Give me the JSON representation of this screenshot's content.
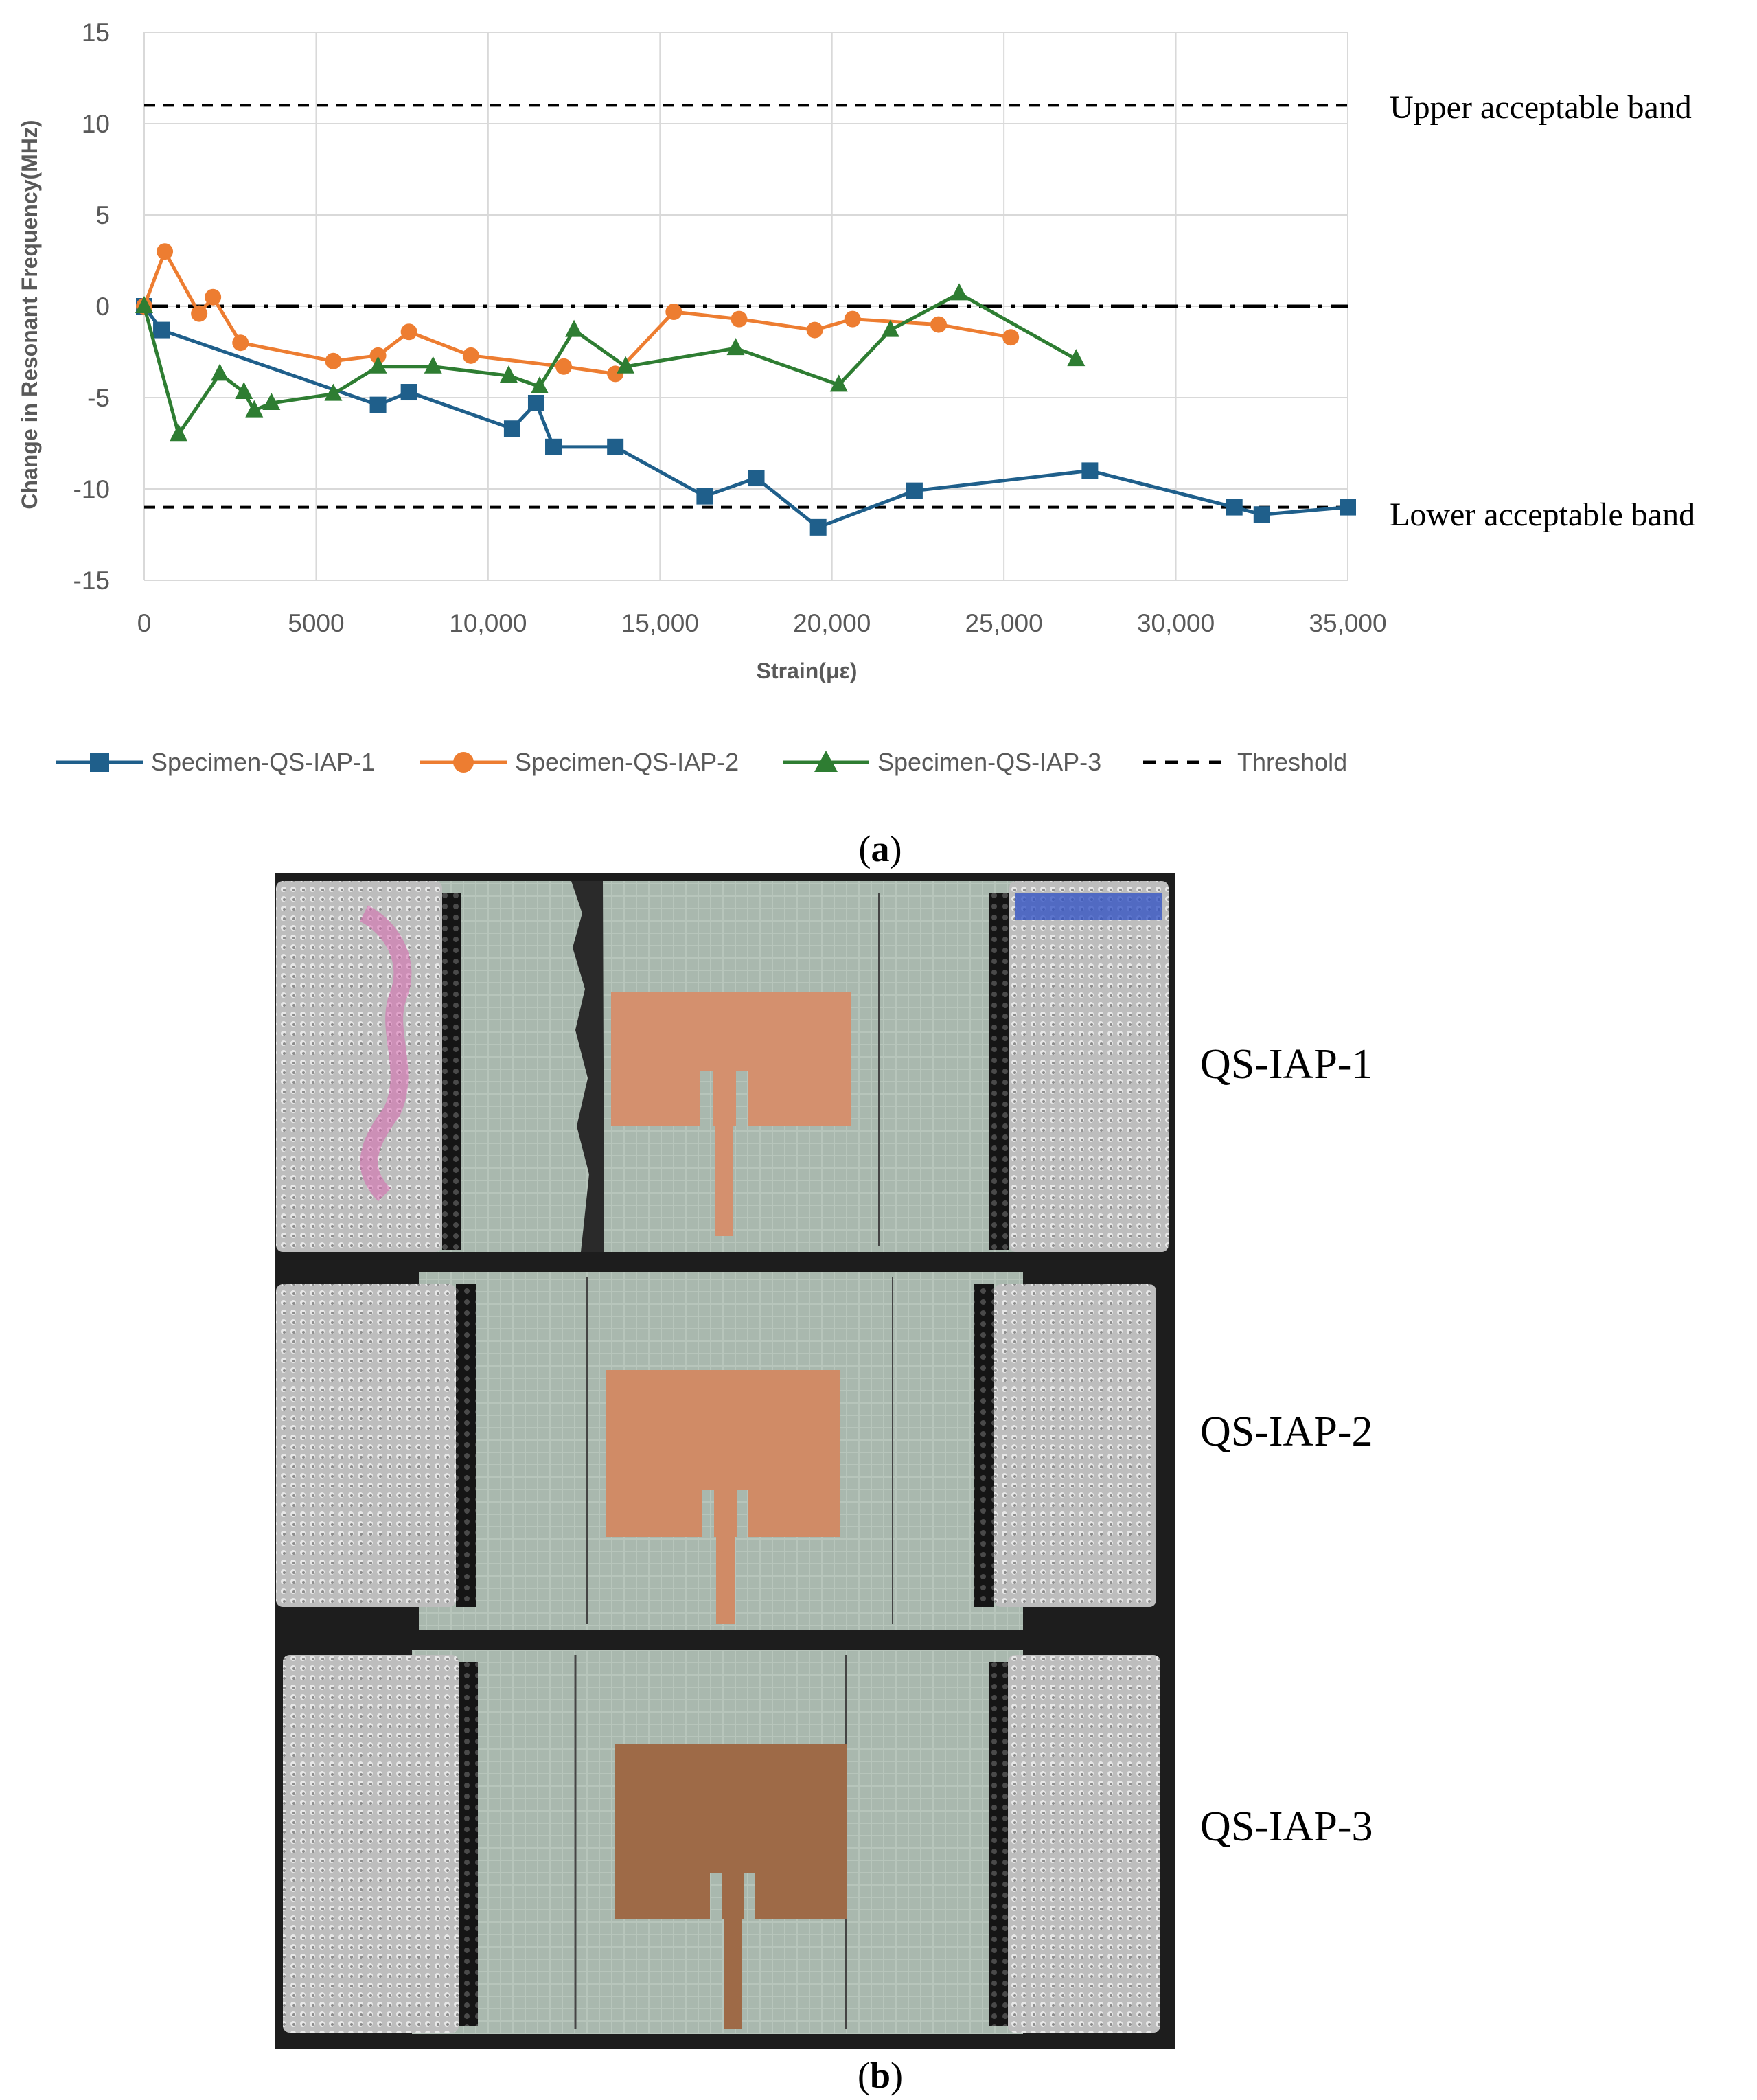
{
  "chart_data": {
    "type": "line",
    "xlabel": "Strain(με)",
    "ylabel": "Change in Resonant Frequency(MHz)",
    "xlim": [
      0,
      35000
    ],
    "ylim": [
      -15,
      15
    ],
    "xticks": [
      "0",
      "5000",
      "10,000",
      "15,000",
      "20,000",
      "25,000",
      "30,000",
      "35,000"
    ],
    "yticks": [
      "15",
      "10",
      "5",
      "0",
      "-5",
      "-10",
      "-15"
    ],
    "grid": true,
    "legend": "bottom",
    "series": [
      {
        "name": "Specimen-QS-IAP-1",
        "color": "#1f5f8b",
        "marker": "square",
        "points": [
          [
            0,
            0
          ],
          [
            500,
            -1.3
          ],
          [
            6800,
            -5.4
          ],
          [
            7700,
            -4.7
          ],
          [
            10700,
            -6.7
          ],
          [
            11400,
            -5.3
          ],
          [
            11900,
            -7.7
          ],
          [
            13700,
            -7.7
          ],
          [
            16300,
            -10.4
          ],
          [
            17800,
            -9.4
          ],
          [
            19600,
            -12.1
          ],
          [
            22400,
            -10.1
          ],
          [
            27500,
            -9.0
          ],
          [
            31700,
            -11.0
          ],
          [
            32500,
            -11.4
          ],
          [
            35000,
            -11.0
          ]
        ]
      },
      {
        "name": "Specimen-QS-IAP-2",
        "color": "#ed7d31",
        "marker": "circle",
        "points": [
          [
            0,
            0
          ],
          [
            600,
            3.0
          ],
          [
            1600,
            -0.4
          ],
          [
            2000,
            0.5
          ],
          [
            2800,
            -2.0
          ],
          [
            5500,
            -3.0
          ],
          [
            6800,
            -2.7
          ],
          [
            7700,
            -1.4
          ],
          [
            9500,
            -2.7
          ],
          [
            12200,
            -3.3
          ],
          [
            13700,
            -3.7
          ],
          [
            15400,
            -0.3
          ],
          [
            17300,
            -0.7
          ],
          [
            19500,
            -1.3
          ],
          [
            20600,
            -0.7
          ],
          [
            23100,
            -1.0
          ],
          [
            25200,
            -1.7
          ]
        ]
      },
      {
        "name": "Specimen-QS-IAP-3",
        "color": "#2e7d32",
        "marker": "triangle",
        "points": [
          [
            0,
            0
          ],
          [
            1000,
            -7.0
          ],
          [
            2200,
            -3.7
          ],
          [
            2900,
            -4.7
          ],
          [
            3200,
            -5.7
          ],
          [
            3700,
            -5.3
          ],
          [
            5500,
            -4.8
          ],
          [
            6800,
            -3.3
          ],
          [
            8400,
            -3.3
          ],
          [
            10600,
            -3.8
          ],
          [
            11500,
            -4.4
          ],
          [
            12500,
            -1.3
          ],
          [
            14000,
            -3.3
          ],
          [
            17200,
            -2.3
          ],
          [
            20200,
            -4.3
          ],
          [
            21700,
            -1.3
          ],
          [
            23700,
            0.7
          ],
          [
            27100,
            -2.9
          ]
        ]
      }
    ],
    "threshold": {
      "name": "Threshold",
      "values": [
        11,
        -11
      ]
    },
    "zero_line": 0,
    "annotations": [
      "Upper acceptable band",
      "Lower acceptable band"
    ]
  },
  "captions": {
    "a": "a",
    "b": "b"
  },
  "photo": {
    "specimens": [
      "QS-IAP-1",
      "QS-IAP-2",
      "QS-IAP-3"
    ],
    "board_color": "#1d1d1d",
    "glass_color": "#a9b8ae",
    "copper_colors": [
      "#d4906e",
      "#d08b66",
      "#9e6a47"
    ],
    "tab_color": "#c9c9c9"
  }
}
